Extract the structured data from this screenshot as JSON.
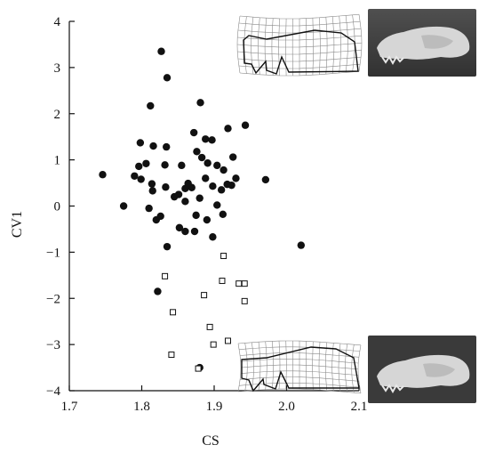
{
  "chart_data": {
    "type": "scatter",
    "title": "",
    "xlabel": "CS",
    "ylabel": "CV1",
    "xlim": [
      1.7,
      2.1
    ],
    "ylim": [
      -4,
      4
    ],
    "xticks": [
      "1.7",
      "1.8",
      "1.9",
      "2.0",
      "2.1"
    ],
    "yticks": [
      "−4",
      "−3",
      "−2",
      "−1",
      "0",
      "1",
      "2",
      "3",
      "4"
    ],
    "grid": false,
    "series": [
      {
        "marker": "filled-circle",
        "color": "#111111",
        "points": [
          [
            1.827,
            3.35
          ],
          [
            1.835,
            2.78
          ],
          [
            1.812,
            2.17
          ],
          [
            1.881,
            2.24
          ],
          [
            1.798,
            1.37
          ],
          [
            1.816,
            1.3
          ],
          [
            1.834,
            1.28
          ],
          [
            1.872,
            1.59
          ],
          [
            1.888,
            1.45
          ],
          [
            1.897,
            1.43
          ],
          [
            1.919,
            1.68
          ],
          [
            1.943,
            1.75
          ],
          [
            1.926,
            1.06
          ],
          [
            1.746,
            0.68
          ],
          [
            1.79,
            0.65
          ],
          [
            1.796,
            0.86
          ],
          [
            1.806,
            0.92
          ],
          [
            1.814,
            0.48
          ],
          [
            1.832,
            0.89
          ],
          [
            1.855,
            0.88
          ],
          [
            1.876,
            1.18
          ],
          [
            1.883,
            1.05
          ],
          [
            1.891,
            0.93
          ],
          [
            1.904,
            0.88
          ],
          [
            1.913,
            0.78
          ],
          [
            1.93,
            0.6
          ],
          [
            1.971,
            0.57
          ],
          [
            1.799,
            0.58
          ],
          [
            1.815,
            0.33
          ],
          [
            1.833,
            0.41
          ],
          [
            1.851,
            0.25
          ],
          [
            1.86,
            0.38
          ],
          [
            1.869,
            0.4
          ],
          [
            1.88,
            0.17
          ],
          [
            1.888,
            0.6
          ],
          [
            1.898,
            0.43
          ],
          [
            1.91,
            0.35
          ],
          [
            1.918,
            0.47
          ],
          [
            1.924,
            0.45
          ],
          [
            1.864,
            0.49
          ],
          [
            1.775,
            0.0
          ],
          [
            1.81,
            -0.05
          ],
          [
            1.82,
            -0.3
          ],
          [
            1.826,
            -0.22
          ],
          [
            1.845,
            0.2
          ],
          [
            1.86,
            0.1
          ],
          [
            1.875,
            -0.2
          ],
          [
            1.89,
            -0.3
          ],
          [
            1.904,
            0.02
          ],
          [
            1.912,
            -0.18
          ],
          [
            1.852,
            -0.47
          ],
          [
            1.86,
            -0.55
          ],
          [
            1.873,
            -0.55
          ],
          [
            1.898,
            -0.67
          ],
          [
            1.835,
            -0.88
          ],
          [
            2.02,
            -0.85
          ],
          [
            1.822,
            -1.85
          ],
          [
            1.88,
            -3.5
          ]
        ]
      },
      {
        "marker": "open-square",
        "color": "#111111",
        "points": [
          [
            1.832,
            -1.52
          ],
          [
            1.913,
            -1.08
          ],
          [
            1.911,
            -1.62
          ],
          [
            1.934,
            -1.68
          ],
          [
            1.942,
            -1.68
          ],
          [
            1.843,
            -2.3
          ],
          [
            1.886,
            -1.93
          ],
          [
            1.942,
            -2.06
          ],
          [
            1.894,
            -2.62
          ],
          [
            1.919,
            -2.92
          ],
          [
            1.899,
            -3.0
          ],
          [
            1.841,
            -3.22
          ],
          [
            1.878,
            -3.52
          ]
        ]
      }
    ]
  },
  "colors": {
    "axis": "#111111",
    "marker": "#111111",
    "grid_line": "#8a8a8a",
    "outline": "#111111",
    "photo_bg": "#3d3d3d",
    "skull": "#d9d9d9"
  },
  "insets": {
    "top_deformation_grid": "deformation-grid-positive",
    "top_photo": "skull-photo",
    "bottom_deformation_grid": "deformation-grid-negative",
    "bottom_photo": "skull-photo"
  }
}
